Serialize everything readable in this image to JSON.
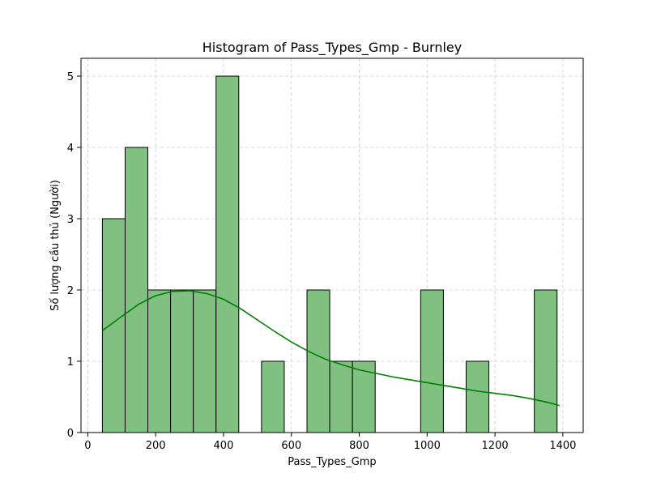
{
  "chart_data": {
    "type": "bar",
    "title": "Histogram of Pass_Types_Gmp - Burnley",
    "xlabel": "Pass_Types_Gmp",
    "ylabel": "Số lượng cầu thủ (Người)",
    "xlim": [
      -20,
      1460
    ],
    "ylim": [
      0,
      5.25
    ],
    "xticks": [
      0,
      200,
      400,
      600,
      800,
      1000,
      1200,
      1400
    ],
    "yticks": [
      0,
      1,
      2,
      3,
      4,
      5
    ],
    "grid": true,
    "bins": [
      {
        "x0": 43,
        "x1": 110,
        "count": 3
      },
      {
        "x0": 110,
        "x1": 177,
        "count": 4
      },
      {
        "x0": 177,
        "x1": 244,
        "count": 2
      },
      {
        "x0": 244,
        "x1": 311,
        "count": 2
      },
      {
        "x0": 311,
        "x1": 378,
        "count": 2
      },
      {
        "x0": 378,
        "x1": 445,
        "count": 5
      },
      {
        "x0": 445,
        "x1": 512,
        "count": 0
      },
      {
        "x0": 512,
        "x1": 579,
        "count": 1
      },
      {
        "x0": 579,
        "x1": 646,
        "count": 0
      },
      {
        "x0": 646,
        "x1": 713,
        "count": 2
      },
      {
        "x0": 713,
        "x1": 780,
        "count": 1
      },
      {
        "x0": 780,
        "x1": 847,
        "count": 1
      },
      {
        "x0": 847,
        "x1": 914,
        "count": 0
      },
      {
        "x0": 914,
        "x1": 981,
        "count": 0
      },
      {
        "x0": 981,
        "x1": 1048,
        "count": 2
      },
      {
        "x0": 1048,
        "x1": 1115,
        "count": 0
      },
      {
        "x0": 1115,
        "x1": 1182,
        "count": 1
      },
      {
        "x0": 1182,
        "x1": 1249,
        "count": 0
      },
      {
        "x0": 1249,
        "x1": 1316,
        "count": 0
      },
      {
        "x0": 1316,
        "x1": 1383,
        "count": 2
      }
    ],
    "kde": {
      "x": [
        43,
        100,
        150,
        200,
        250,
        300,
        350,
        400,
        450,
        500,
        550,
        600,
        650,
        700,
        750,
        800,
        850,
        900,
        950,
        1000,
        1050,
        1100,
        1150,
        1200,
        1250,
        1300,
        1350,
        1390
      ],
      "y": [
        1.43,
        1.63,
        1.8,
        1.92,
        1.98,
        1.99,
        1.95,
        1.87,
        1.74,
        1.58,
        1.42,
        1.27,
        1.14,
        1.03,
        0.95,
        0.88,
        0.83,
        0.78,
        0.74,
        0.7,
        0.66,
        0.62,
        0.58,
        0.55,
        0.52,
        0.48,
        0.43,
        0.38
      ]
    },
    "colors": {
      "bar_fill": "#80c080",
      "bar_edge": "#000000",
      "kde_line": "#008000",
      "grid": "#cccccc"
    }
  }
}
